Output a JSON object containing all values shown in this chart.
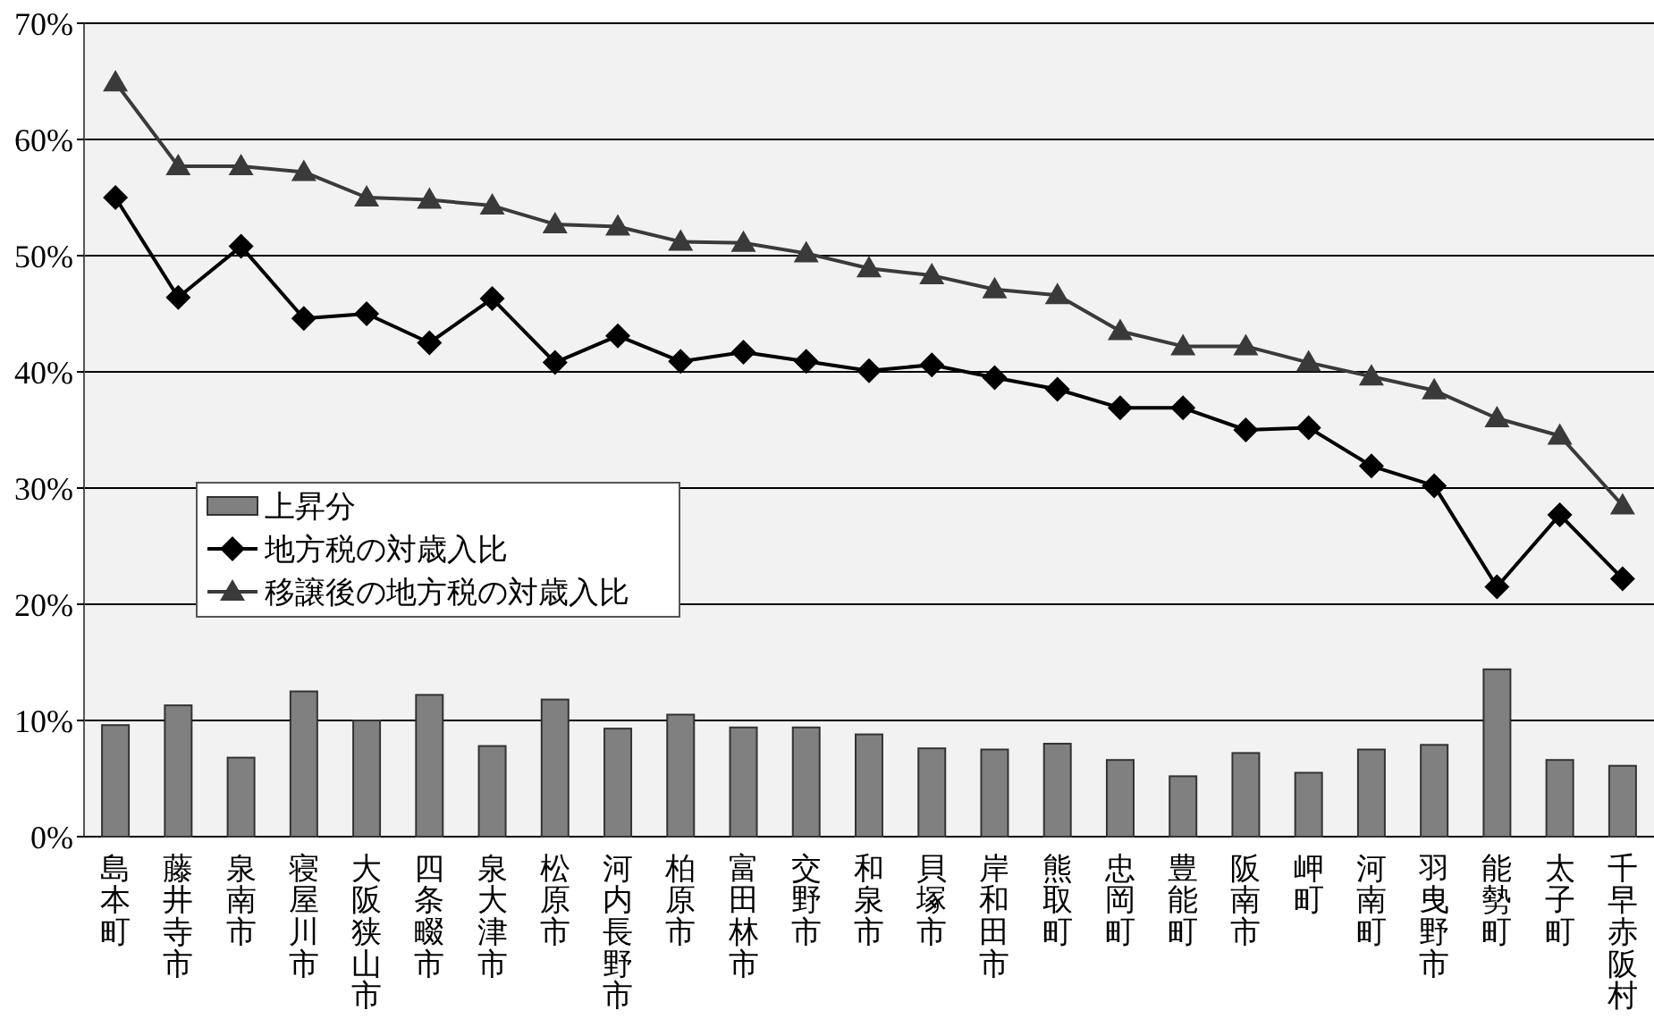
{
  "chart_data": {
    "type": "bar",
    "categories": [
      "島本町",
      "藤井寺市",
      "泉南市",
      "寝屋川市",
      "大阪狭山市",
      "四条畷市",
      "泉大津市",
      "松原市",
      "河内長野市",
      "柏原市",
      "富田林市",
      "交野市",
      "和泉市",
      "貝塚市",
      "岸和田市",
      "熊取町",
      "忠岡町",
      "豊能町",
      "阪南市",
      "岬町",
      "河南町",
      "羽曳野市",
      "能勢町",
      "太子町",
      "千早赤阪村"
    ],
    "series": [
      {
        "name": "上昇分",
        "color": "#808080",
        "values": [
          9.6,
          11.3,
          6.8,
          12.5,
          10.0,
          12.2,
          7.8,
          11.8,
          9.3,
          10.5,
          9.4,
          9.4,
          8.8,
          7.6,
          7.5,
          8.0,
          6.6,
          5.2,
          7.2,
          5.5,
          7.5,
          7.9,
          14.4,
          6.6,
          6.1
        ]
      },
      {
        "name": "地方税の対歳入比",
        "type": "line",
        "marker": "diamond",
        "color": "#000000",
        "values": [
          55.0,
          46.4,
          50.8,
          44.6,
          45.0,
          42.5,
          46.3,
          40.8,
          43.1,
          40.9,
          41.7,
          40.9,
          40.1,
          40.6,
          39.5,
          38.5,
          36.9,
          36.9,
          35.0,
          35.2,
          31.9,
          30.2,
          21.5,
          27.7,
          22.2
        ]
      },
      {
        "name": "移譲後の地方税の対歳入比",
        "type": "line",
        "marker": "triangle",
        "color": "#3a3a3a",
        "values": [
          64.9,
          57.7,
          57.7,
          57.2,
          55.0,
          54.8,
          54.3,
          52.7,
          52.5,
          51.2,
          51.1,
          50.2,
          48.9,
          48.3,
          47.1,
          46.6,
          43.5,
          42.2,
          42.2,
          40.8,
          39.6,
          38.4,
          36.0,
          34.5,
          28.5
        ]
      }
    ],
    "ylim": [
      0,
      70
    ],
    "yticks": [
      {
        "value": 0,
        "label": "0%"
      },
      {
        "value": 10,
        "label": "10%"
      },
      {
        "value": 20,
        "label": "20%"
      },
      {
        "value": 30,
        "label": "30%"
      },
      {
        "value": 40,
        "label": "40%"
      },
      {
        "value": 50,
        "label": "50%"
      },
      {
        "value": 60,
        "label": "60%"
      },
      {
        "value": 70,
        "label": "70%"
      }
    ],
    "grid": "y",
    "legend": "left"
  }
}
